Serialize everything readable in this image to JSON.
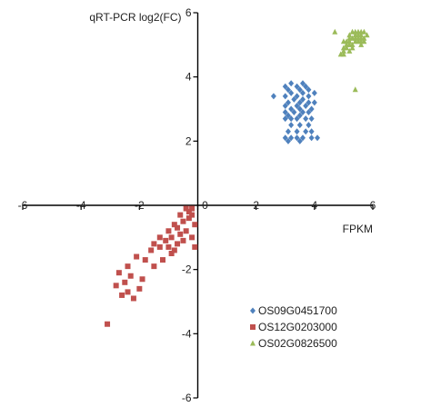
{
  "chart_data": {
    "type": "scatter",
    "xlabel": "FPKM",
    "ylabel": "qRT-PCR log2(FC)",
    "xlim": [
      -6,
      6
    ],
    "ylim": [
      -6,
      6
    ],
    "x_ticks": [
      -6,
      -4,
      -2,
      0,
      2,
      4,
      6
    ],
    "y_ticks": [
      6,
      4,
      2,
      -2,
      -4,
      -6
    ],
    "grid": false,
    "legend_position": "bottom-right",
    "series": [
      {
        "name": "OS09G0451700",
        "color": "#4f81bd",
        "marker": "diamond",
        "points": [
          [
            3.0,
            2.1
          ],
          [
            3.2,
            2.1
          ],
          [
            3.4,
            2.1
          ],
          [
            3.6,
            2.1
          ],
          [
            3.9,
            2.1
          ],
          [
            4.1,
            2.1
          ],
          [
            3.1,
            2.0
          ],
          [
            3.5,
            2.0
          ],
          [
            3.1,
            2.3
          ],
          [
            3.4,
            2.3
          ],
          [
            3.7,
            2.3
          ],
          [
            3.9,
            2.3
          ],
          [
            3.2,
            2.5
          ],
          [
            3.5,
            2.5
          ],
          [
            3.8,
            2.5
          ],
          [
            3.0,
            2.7
          ],
          [
            3.2,
            2.7
          ],
          [
            3.4,
            2.7
          ],
          [
            3.7,
            2.7
          ],
          [
            3.9,
            2.7
          ],
          [
            3.1,
            2.8
          ],
          [
            3.5,
            2.8
          ],
          [
            3.0,
            2.9
          ],
          [
            3.3,
            2.9
          ],
          [
            3.6,
            2.9
          ],
          [
            3.8,
            2.9
          ],
          [
            3.2,
            3.0
          ],
          [
            3.5,
            3.0
          ],
          [
            3.9,
            3.0
          ],
          [
            3.0,
            3.1
          ],
          [
            3.4,
            3.1
          ],
          [
            3.7,
            3.1
          ],
          [
            3.1,
            3.2
          ],
          [
            3.5,
            3.2
          ],
          [
            3.8,
            3.2
          ],
          [
            4.0,
            3.2
          ],
          [
            3.3,
            3.3
          ],
          [
            3.6,
            3.3
          ],
          [
            2.6,
            3.4
          ],
          [
            3.0,
            3.4
          ],
          [
            3.4,
            3.4
          ],
          [
            3.8,
            3.4
          ],
          [
            3.2,
            3.5
          ],
          [
            3.6,
            3.5
          ],
          [
            4.0,
            3.5
          ],
          [
            3.1,
            3.6
          ],
          [
            3.5,
            3.6
          ],
          [
            3.8,
            3.6
          ],
          [
            3.0,
            3.7
          ],
          [
            3.4,
            3.7
          ],
          [
            3.7,
            3.7
          ],
          [
            3.2,
            3.8
          ],
          [
            3.6,
            3.8
          ]
        ]
      },
      {
        "name": "OS12G0203000",
        "color": "#c0504d",
        "marker": "square",
        "points": [
          [
            -3.1,
            -3.7
          ],
          [
            -2.6,
            -2.8
          ],
          [
            -2.4,
            -2.7
          ],
          [
            -2.2,
            -2.9
          ],
          [
            -2.8,
            -2.5
          ],
          [
            -2.5,
            -2.4
          ],
          [
            -2.0,
            -2.6
          ],
          [
            -2.7,
            -2.1
          ],
          [
            -2.3,
            -2.2
          ],
          [
            -1.9,
            -2.3
          ],
          [
            -2.4,
            -1.9
          ],
          [
            -1.5,
            -1.9
          ],
          [
            -2.1,
            -1.6
          ],
          [
            -1.8,
            -1.7
          ],
          [
            -1.2,
            -1.7
          ],
          [
            -1.6,
            -1.4
          ],
          [
            -1.3,
            -1.3
          ],
          [
            -0.9,
            -1.5
          ],
          [
            -1.5,
            -1.2
          ],
          [
            -1.1,
            -1.1
          ],
          [
            -0.7,
            -1.2
          ],
          [
            -1.3,
            -1.0
          ],
          [
            -0.9,
            -1.0
          ],
          [
            -0.6,
            -0.9
          ],
          [
            -1.0,
            -0.8
          ],
          [
            -0.7,
            -0.7
          ],
          [
            -0.4,
            -0.8
          ],
          [
            -0.8,
            -0.6
          ],
          [
            -0.5,
            -0.5
          ],
          [
            -0.3,
            -0.4
          ],
          [
            -0.6,
            -0.3
          ],
          [
            -0.3,
            -0.2
          ],
          [
            -0.2,
            -0.1
          ],
          [
            -0.4,
            -0.1
          ],
          [
            -0.1,
            -0.6
          ],
          [
            -0.2,
            -1.0
          ],
          [
            -1.0,
            -1.3
          ],
          [
            -0.8,
            -1.4
          ],
          [
            -0.5,
            -1.1
          ],
          [
            -0.1,
            -1.3
          ],
          [
            -0.2,
            -0.3
          ]
        ]
      },
      {
        "name": "OS02G0826500",
        "color": "#9bbb59",
        "marker": "triangle",
        "points": [
          [
            4.7,
            5.4
          ],
          [
            5.4,
            3.6
          ],
          [
            4.9,
            4.7
          ],
          [
            5.0,
            4.8
          ],
          [
            5.0,
            4.9
          ],
          [
            5.1,
            4.9
          ],
          [
            5.1,
            5.0
          ],
          [
            5.2,
            5.0
          ],
          [
            5.3,
            5.0
          ],
          [
            5.0,
            5.1
          ],
          [
            5.2,
            5.1
          ],
          [
            5.3,
            5.2
          ],
          [
            5.4,
            5.2
          ],
          [
            5.5,
            5.2
          ],
          [
            5.2,
            5.3
          ],
          [
            5.4,
            5.3
          ],
          [
            5.5,
            5.3
          ],
          [
            5.6,
            5.3
          ],
          [
            5.3,
            5.4
          ],
          [
            5.5,
            5.4
          ],
          [
            5.6,
            5.4
          ],
          [
            5.7,
            5.4
          ],
          [
            5.1,
            5.1
          ],
          [
            5.6,
            5.1
          ],
          [
            5.7,
            5.2
          ],
          [
            5.8,
            5.3
          ],
          [
            5.4,
            5.1
          ],
          [
            5.6,
            5.2
          ],
          [
            5.5,
            5.1
          ],
          [
            5.7,
            5.1
          ],
          [
            5.2,
            5.2
          ],
          [
            5.4,
            5.4
          ],
          [
            5.6,
            5.0
          ],
          [
            5.3,
            4.9
          ],
          [
            5.0,
            4.7
          ],
          [
            5.2,
            4.8
          ]
        ]
      }
    ]
  }
}
